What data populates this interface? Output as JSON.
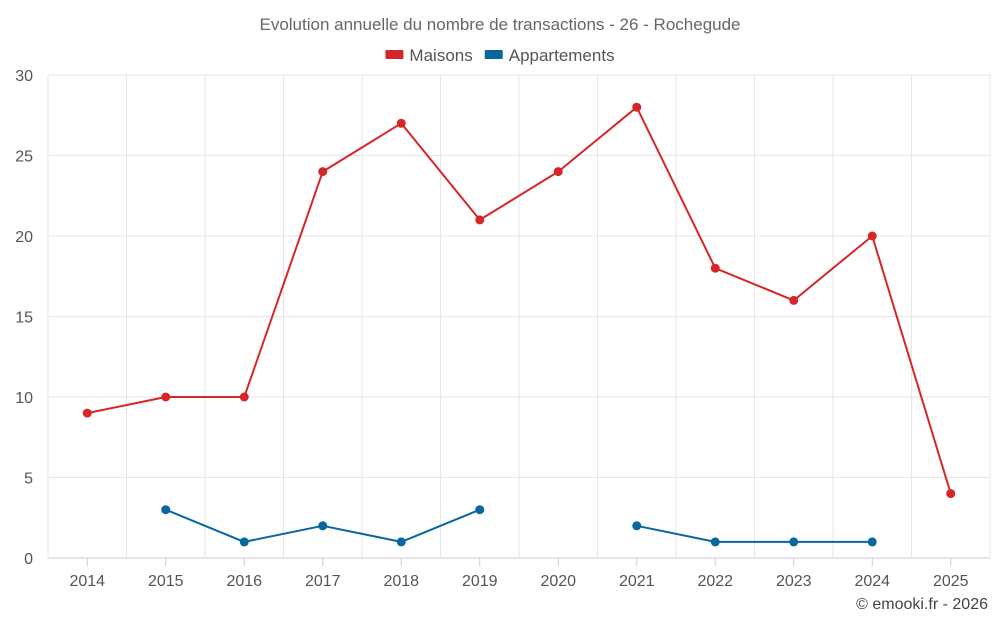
{
  "chart_data": {
    "type": "line",
    "title": "Evolution annuelle du nombre de transactions - 26 - Rochegude",
    "categories": [
      "2014",
      "2015",
      "2016",
      "2017",
      "2018",
      "2019",
      "2020",
      "2021",
      "2022",
      "2023",
      "2024",
      "2025"
    ],
    "series": [
      {
        "name": "Maisons",
        "color": "#d62728",
        "values": [
          9,
          10,
          10,
          24,
          27,
          21,
          24,
          28,
          18,
          16,
          20,
          4
        ]
      },
      {
        "name": "Appartements",
        "color": "#08679d",
        "values": [
          null,
          3,
          1,
          2,
          1,
          3,
          null,
          2,
          1,
          1,
          1,
          null
        ]
      }
    ],
    "ylim": [
      0,
      30
    ],
    "yticks": [
      0,
      5,
      10,
      15,
      20,
      25,
      30
    ],
    "xlabel": "",
    "ylabel": "",
    "grid": true,
    "legend_position": "top-center"
  },
  "credit": "© emooki.fr - 2026"
}
